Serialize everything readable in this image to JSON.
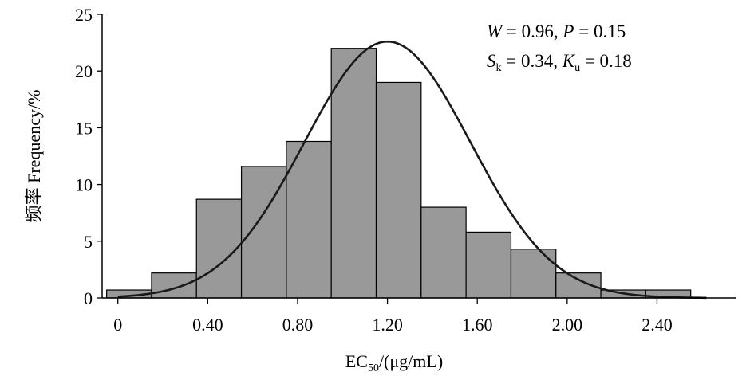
{
  "chart_data": {
    "type": "bar",
    "title": "",
    "xlabel_main": "EC",
    "xlabel_sub": "50",
    "xlabel_tail": "/(μg/mL)",
    "ylabel": "频率 Frequency/%",
    "x_ticks": [
      "0",
      "0.40",
      "0.80",
      "1.20",
      "1.60",
      "2.00",
      "2.40"
    ],
    "x_tick_values": [
      0.0,
      0.4,
      0.8,
      1.2,
      1.6,
      2.0,
      2.4
    ],
    "y_ticks": [
      "0",
      "5",
      "10",
      "15",
      "20",
      "25"
    ],
    "ylim": [
      0,
      25
    ],
    "xlim": [
      -0.07,
      2.75
    ],
    "bin_width": 0.2,
    "bins": [
      {
        "start": -0.05,
        "value": 0.7
      },
      {
        "start": 0.15,
        "value": 2.2
      },
      {
        "start": 0.35,
        "value": 8.7
      },
      {
        "start": 0.55,
        "value": 11.6
      },
      {
        "start": 0.75,
        "value": 13.8
      },
      {
        "start": 0.95,
        "value": 22.0
      },
      {
        "start": 1.15,
        "value": 19.0
      },
      {
        "start": 1.35,
        "value": 8.0
      },
      {
        "start": 1.55,
        "value": 5.8
      },
      {
        "start": 1.75,
        "value": 4.3
      },
      {
        "start": 1.95,
        "value": 2.2
      },
      {
        "start": 2.15,
        "value": 0.7
      },
      {
        "start": 2.35,
        "value": 0.7
      }
    ],
    "normal_curve": {
      "mean": 1.2,
      "peak": 22.6,
      "sd": 0.37,
      "x_range": [
        0.0,
        2.62
      ]
    },
    "annotations": {
      "line1": {
        "W_label": "W",
        "W_value": " = 0.96, ",
        "P_label": "P",
        "P_value": " = 0.15"
      },
      "line2": {
        "S_label": "S",
        "S_sub": "k",
        "S_value": " = 0.34, ",
        "K_label": "K",
        "K_sub": "u",
        "K_value": " = 0.18"
      }
    },
    "colors": {
      "bar_fill": "#999999",
      "bar_stroke": "#000000",
      "curve": "#1a1a1a",
      "axis": "#000000"
    }
  }
}
